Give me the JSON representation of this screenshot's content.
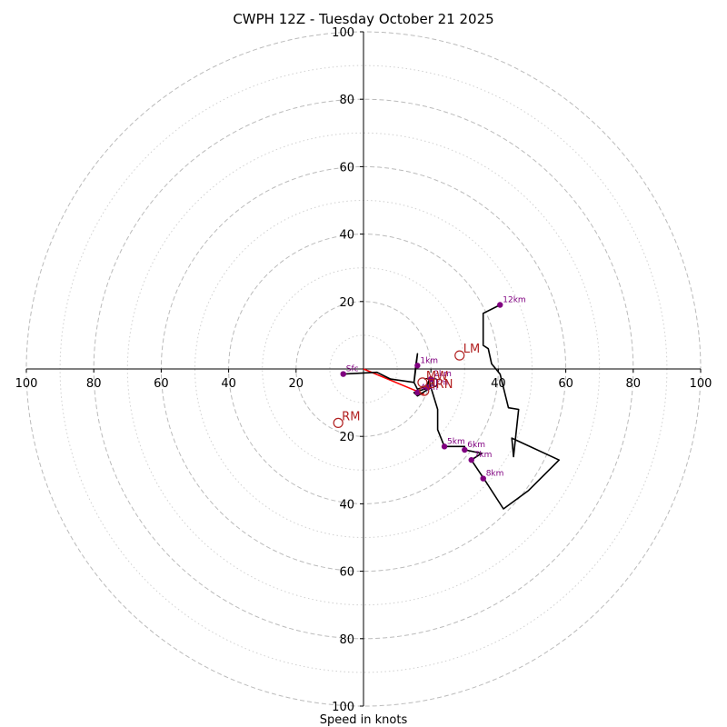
{
  "chart_data": {
    "type": "hodograph",
    "title": "CWPH 12Z - Tuesday October 21 2025",
    "xlabel": "Speed in knots",
    "range": [
      -100,
      100
    ],
    "major_ring_values": [
      20,
      40,
      60,
      80,
      100
    ],
    "minor_ring_values": [
      10,
      30,
      50,
      70,
      90
    ],
    "tick_labels": {
      "x": [
        "100",
        "80",
        "60",
        "40",
        "20",
        "20",
        "40",
        "60",
        "80",
        "100"
      ],
      "y": [
        "100",
        "80",
        "60",
        "40",
        "20",
        "20",
        "40",
        "60",
        "80",
        "100"
      ]
    },
    "tick_values": {
      "x": [
        -100,
        -80,
        -60,
        -40,
        -20,
        20,
        40,
        60,
        80,
        100
      ],
      "y": [
        100,
        80,
        60,
        40,
        20,
        -20,
        -40,
        -60,
        -80,
        -100
      ]
    },
    "colors": {
      "trace": "#000000",
      "height_marker": "#800080",
      "motion_marker": "#b22222",
      "shear_vector": "#ff0000",
      "ring_major": "#bbbbbb",
      "ring_minor": "#d0d0d0"
    },
    "trace": [
      [
        -6.0,
        -1.5
      ],
      [
        4.0,
        -1.0
      ],
      [
        8.0,
        -3.0
      ],
      [
        15.0,
        -4.0
      ],
      [
        15.5,
        1.0
      ],
      [
        16.0,
        4.5
      ],
      [
        15.5,
        0.0
      ],
      [
        15.0,
        -4.0
      ],
      [
        16.0,
        -6.0
      ],
      [
        19.0,
        -5.0
      ],
      [
        19.5,
        -3.0
      ],
      [
        20.0,
        -5.5
      ],
      [
        16.0,
        -8.0
      ],
      [
        15.0,
        -7.0
      ],
      [
        18.0,
        -6.0
      ],
      [
        20.0,
        -5.5
      ],
      [
        22.0,
        -12.0
      ],
      [
        22.0,
        -18.0
      ],
      [
        24.0,
        -23.0
      ],
      [
        30.0,
        -23.0
      ],
      [
        30.0,
        -24.0
      ],
      [
        35.0,
        -25.0
      ],
      [
        32.0,
        -27.0
      ],
      [
        36.0,
        -33.0
      ],
      [
        41.5,
        -41.5
      ],
      [
        49.0,
        -36.0
      ],
      [
        58.0,
        -27.0
      ],
      [
        45.0,
        -21.0
      ],
      [
        44.0,
        -20.5
      ],
      [
        44.5,
        -26.0
      ],
      [
        46.0,
        -12.0
      ],
      [
        43.0,
        -11.5
      ],
      [
        40.5,
        -1.5
      ],
      [
        38.0,
        1.5
      ],
      [
        37.0,
        6.0
      ],
      [
        35.5,
        7.0
      ],
      [
        35.5,
        16.5
      ],
      [
        40.5,
        19.0
      ]
    ],
    "height_points": [
      {
        "label": "Sfc",
        "u": -6.0,
        "v": -1.5
      },
      {
        "label": "1km",
        "u": 16.0,
        "v": 1.0
      },
      {
        "label": "2km",
        "u": 20.0,
        "v": -3.0
      },
      {
        "label": "3km",
        "u": 19.0,
        "v": -5.5
      },
      {
        "label": "4km",
        "u": 16.0,
        "v": -7.0
      },
      {
        "label": "5km",
        "u": 24.0,
        "v": -23.0
      },
      {
        "label": "6km",
        "u": 30.0,
        "v": -24.0
      },
      {
        "label": "7km",
        "u": 32.0,
        "v": -27.0
      },
      {
        "label": "8km",
        "u": 35.5,
        "v": -32.5
      },
      {
        "label": "12km",
        "u": 40.5,
        "v": 19.0
      }
    ],
    "motion_points": [
      {
        "label": "LM",
        "u": 28.5,
        "v": 4.0
      },
      {
        "label": "RM",
        "u": -7.5,
        "v": -16.0
      },
      {
        "label": "MW",
        "u": 17.5,
        "v": -4.0
      },
      {
        "label": "BRN",
        "u": 18.0,
        "v": -6.5
      }
    ],
    "shear_vector": {
      "from": [
        0,
        0
      ],
      "to": [
        18.0,
        -7.5
      ]
    }
  }
}
